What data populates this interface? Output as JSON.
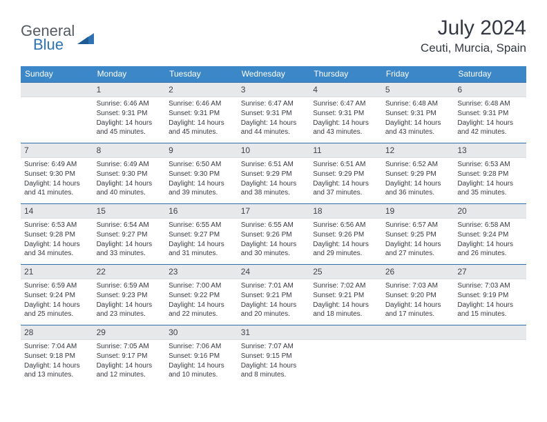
{
  "brand": {
    "word1": "General",
    "word2": "Blue"
  },
  "title": "July 2024",
  "location": "Ceuti, Murcia, Spain",
  "colors": {
    "header_bg": "#3b87c8",
    "daynum_bg": "#e7e8ea",
    "rule": "#2d6ca8",
    "text": "#333740"
  },
  "weekdays": [
    "Sunday",
    "Monday",
    "Tuesday",
    "Wednesday",
    "Thursday",
    "Friday",
    "Saturday"
  ],
  "start_offset": 1,
  "days": [
    {
      "n": "1",
      "sunrise": "6:46 AM",
      "sunset": "9:31 PM",
      "daylight": "14 hours and 45 minutes."
    },
    {
      "n": "2",
      "sunrise": "6:46 AM",
      "sunset": "9:31 PM",
      "daylight": "14 hours and 45 minutes."
    },
    {
      "n": "3",
      "sunrise": "6:47 AM",
      "sunset": "9:31 PM",
      "daylight": "14 hours and 44 minutes."
    },
    {
      "n": "4",
      "sunrise": "6:47 AM",
      "sunset": "9:31 PM",
      "daylight": "14 hours and 43 minutes."
    },
    {
      "n": "5",
      "sunrise": "6:48 AM",
      "sunset": "9:31 PM",
      "daylight": "14 hours and 43 minutes."
    },
    {
      "n": "6",
      "sunrise": "6:48 AM",
      "sunset": "9:31 PM",
      "daylight": "14 hours and 42 minutes."
    },
    {
      "n": "7",
      "sunrise": "6:49 AM",
      "sunset": "9:30 PM",
      "daylight": "14 hours and 41 minutes."
    },
    {
      "n": "8",
      "sunrise": "6:49 AM",
      "sunset": "9:30 PM",
      "daylight": "14 hours and 40 minutes."
    },
    {
      "n": "9",
      "sunrise": "6:50 AM",
      "sunset": "9:30 PM",
      "daylight": "14 hours and 39 minutes."
    },
    {
      "n": "10",
      "sunrise": "6:51 AM",
      "sunset": "9:29 PM",
      "daylight": "14 hours and 38 minutes."
    },
    {
      "n": "11",
      "sunrise": "6:51 AM",
      "sunset": "9:29 PM",
      "daylight": "14 hours and 37 minutes."
    },
    {
      "n": "12",
      "sunrise": "6:52 AM",
      "sunset": "9:29 PM",
      "daylight": "14 hours and 36 minutes."
    },
    {
      "n": "13",
      "sunrise": "6:53 AM",
      "sunset": "9:28 PM",
      "daylight": "14 hours and 35 minutes."
    },
    {
      "n": "14",
      "sunrise": "6:53 AM",
      "sunset": "9:28 PM",
      "daylight": "14 hours and 34 minutes."
    },
    {
      "n": "15",
      "sunrise": "6:54 AM",
      "sunset": "9:27 PM",
      "daylight": "14 hours and 33 minutes."
    },
    {
      "n": "16",
      "sunrise": "6:55 AM",
      "sunset": "9:27 PM",
      "daylight": "14 hours and 31 minutes."
    },
    {
      "n": "17",
      "sunrise": "6:55 AM",
      "sunset": "9:26 PM",
      "daylight": "14 hours and 30 minutes."
    },
    {
      "n": "18",
      "sunrise": "6:56 AM",
      "sunset": "9:26 PM",
      "daylight": "14 hours and 29 minutes."
    },
    {
      "n": "19",
      "sunrise": "6:57 AM",
      "sunset": "9:25 PM",
      "daylight": "14 hours and 27 minutes."
    },
    {
      "n": "20",
      "sunrise": "6:58 AM",
      "sunset": "9:24 PM",
      "daylight": "14 hours and 26 minutes."
    },
    {
      "n": "21",
      "sunrise": "6:59 AM",
      "sunset": "9:24 PM",
      "daylight": "14 hours and 25 minutes."
    },
    {
      "n": "22",
      "sunrise": "6:59 AM",
      "sunset": "9:23 PM",
      "daylight": "14 hours and 23 minutes."
    },
    {
      "n": "23",
      "sunrise": "7:00 AM",
      "sunset": "9:22 PM",
      "daylight": "14 hours and 22 minutes."
    },
    {
      "n": "24",
      "sunrise": "7:01 AM",
      "sunset": "9:21 PM",
      "daylight": "14 hours and 20 minutes."
    },
    {
      "n": "25",
      "sunrise": "7:02 AM",
      "sunset": "9:21 PM",
      "daylight": "14 hours and 18 minutes."
    },
    {
      "n": "26",
      "sunrise": "7:03 AM",
      "sunset": "9:20 PM",
      "daylight": "14 hours and 17 minutes."
    },
    {
      "n": "27",
      "sunrise": "7:03 AM",
      "sunset": "9:19 PM",
      "daylight": "14 hours and 15 minutes."
    },
    {
      "n": "28",
      "sunrise": "7:04 AM",
      "sunset": "9:18 PM",
      "daylight": "14 hours and 13 minutes."
    },
    {
      "n": "29",
      "sunrise": "7:05 AM",
      "sunset": "9:17 PM",
      "daylight": "14 hours and 12 minutes."
    },
    {
      "n": "30",
      "sunrise": "7:06 AM",
      "sunset": "9:16 PM",
      "daylight": "14 hours and 10 minutes."
    },
    {
      "n": "31",
      "sunrise": "7:07 AM",
      "sunset": "9:15 PM",
      "daylight": "14 hours and 8 minutes."
    }
  ],
  "labels": {
    "sunrise": "Sunrise:",
    "sunset": "Sunset:",
    "daylight": "Daylight:"
  }
}
